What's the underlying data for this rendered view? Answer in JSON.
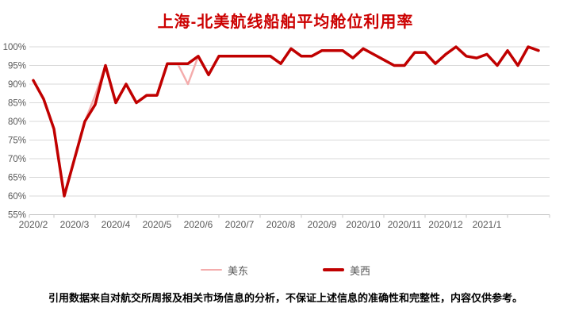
{
  "title": {
    "text": "上海-北美航线船舶平均舱位利用率",
    "color": "#CC0000"
  },
  "chart_data": {
    "type": "line",
    "x_axis": {
      "tick_labels": [
        "2020/2",
        "2020/3",
        "2020/4",
        "2020/5",
        "2020/6",
        "2020/7",
        "2020/8",
        "2020/9",
        "2020/10",
        "2020/11",
        "2020/12",
        "2021/1"
      ],
      "points_per_month": 4
    },
    "y_axis": {
      "min": 55,
      "max": 100,
      "step": 5,
      "tick_labels": [
        "55%",
        "60%",
        "65%",
        "70%",
        "75%",
        "80%",
        "85%",
        "90%",
        "95%",
        "100%"
      ]
    },
    "grid": "horizontal",
    "legend_position": "bottom",
    "colors": {
      "gridline": "#D9D9D9",
      "axis": "#C6C6C6",
      "tick_text": "#595959"
    },
    "series": [
      {
        "name": "美东",
        "color": "#F4ACAC",
        "stroke_width": 2.5,
        "values": [
          91,
          86,
          78,
          60,
          70,
          80,
          87,
          95,
          85,
          90,
          85,
          87,
          87,
          95.5,
          95.5,
          90,
          97.5,
          92.5,
          97.5,
          97.5,
          97.5,
          97.5,
          97.5,
          97.5,
          95.5,
          99.5,
          97.5,
          97.5,
          99,
          99,
          99,
          97,
          99.5,
          98,
          96.5,
          95,
          95,
          98.5,
          98.5,
          95.5,
          98,
          100,
          97.5,
          97,
          98,
          95,
          99,
          95,
          100,
          99
        ]
      },
      {
        "name": "美西",
        "color": "#C00000",
        "stroke_width": 3.5,
        "values": [
          91,
          86,
          78,
          60,
          70,
          80,
          84.5,
          95,
          85,
          90,
          85,
          87,
          87,
          95.5,
          95.5,
          95.5,
          97.5,
          92.5,
          97.5,
          97.5,
          97.5,
          97.5,
          97.5,
          97.5,
          95.5,
          99.5,
          97.5,
          97.5,
          99,
          99,
          99,
          97,
          99.5,
          98,
          96.5,
          95,
          95,
          98.5,
          98.5,
          95.5,
          98,
          100,
          97.5,
          97,
          98,
          95,
          99,
          95,
          100,
          99
        ]
      }
    ]
  },
  "legend": {
    "items": [
      {
        "label": "美东",
        "color": "#F4ACAC"
      },
      {
        "label": "美西",
        "color": "#C00000"
      }
    ]
  },
  "footer": {
    "text": "引用数据来自对航交所周报及相关市场信息的分析，不保证上述信息的准确性和完整性，内容仅供参考。"
  }
}
